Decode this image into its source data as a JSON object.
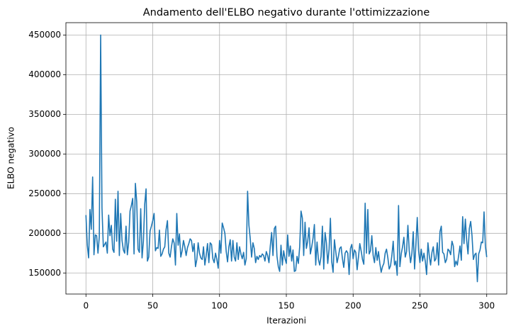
{
  "chart_data": {
    "type": "line",
    "title": "Andamento dell'ELBO negativo durante l'ottimizzazione",
    "x_label": "Iterazioni",
    "y_label": "ELBO negativo",
    "color": "#1f77b4",
    "grid": true,
    "xlim": [
      -15,
      315
    ],
    "ylim": [
      123450,
      465550
    ],
    "xticks": [
      0,
      50,
      100,
      150,
      200,
      250,
      300
    ],
    "yticks": [
      150000,
      200000,
      250000,
      300000,
      350000,
      400000,
      450000
    ],
    "x": [
      0,
      1,
      2,
      3,
      4,
      5,
      6,
      7,
      8,
      9,
      10,
      11,
      12,
      13,
      14,
      15,
      16,
      17,
      18,
      19,
      20,
      21,
      22,
      23,
      24,
      25,
      26,
      27,
      28,
      29,
      30,
      31,
      32,
      33,
      34,
      35,
      36,
      37,
      38,
      39,
      40,
      41,
      42,
      43,
      44,
      45,
      46,
      47,
      48,
      49,
      50,
      51,
      52,
      53,
      54,
      55,
      56,
      57,
      58,
      59,
      60,
      61,
      62,
      63,
      64,
      65,
      66,
      67,
      68,
      69,
      70,
      71,
      72,
      73,
      74,
      75,
      76,
      77,
      78,
      79,
      80,
      81,
      82,
      83,
      84,
      85,
      86,
      87,
      88,
      89,
      90,
      91,
      92,
      93,
      94,
      95,
      96,
      97,
      98,
      99,
      100,
      101,
      102,
      103,
      104,
      105,
      106,
      107,
      108,
      109,
      110,
      111,
      112,
      113,
      114,
      115,
      116,
      117,
      118,
      119,
      120,
      121,
      122,
      123,
      124,
      125,
      126,
      127,
      128,
      129,
      130,
      131,
      132,
      133,
      134,
      135,
      136,
      137,
      138,
      139,
      140,
      141,
      142,
      143,
      144,
      145,
      146,
      147,
      148,
      149,
      150,
      151,
      152,
      153,
      154,
      155,
      156,
      157,
      158,
      159,
      160,
      161,
      162,
      163,
      164,
      165,
      166,
      167,
      168,
      169,
      170,
      171,
      172,
      173,
      174,
      175,
      176,
      177,
      178,
      179,
      180,
      181,
      182,
      183,
      184,
      185,
      186,
      187,
      188,
      189,
      190,
      191,
      192,
      193,
      194,
      195,
      196,
      197,
      198,
      199,
      200,
      201,
      202,
      203,
      204,
      205,
      206,
      207,
      208,
      209,
      210,
      211,
      212,
      213,
      214,
      215,
      216,
      217,
      218,
      219,
      220,
      221,
      222,
      223,
      224,
      225,
      226,
      227,
      228,
      229,
      230,
      231,
      232,
      233,
      234,
      235,
      236,
      237,
      238,
      239,
      240,
      241,
      242,
      243,
      244,
      245,
      246,
      247,
      248,
      249,
      250,
      251,
      252,
      253,
      254,
      255,
      256,
      257,
      258,
      259,
      260,
      261,
      262,
      263,
      264,
      265,
      266,
      267,
      268,
      269,
      270,
      271,
      272,
      273,
      274,
      275,
      276,
      277,
      278,
      279,
      280,
      281,
      282,
      283,
      284,
      285,
      286,
      287,
      288,
      289,
      290,
      291,
      292,
      293,
      294,
      295,
      296,
      297,
      298,
      299,
      300
    ],
    "values": [
      223000,
      185000,
      169000,
      230000,
      205000,
      271000,
      173000,
      198000,
      197000,
      175000,
      196000,
      450000,
      232000,
      183000,
      186000,
      189000,
      175000,
      223000,
      197000,
      210000,
      180000,
      176000,
      243000,
      190000,
      253000,
      172000,
      225000,
      191000,
      179000,
      175000,
      209000,
      173000,
      189000,
      228000,
      235000,
      244000,
      174000,
      263000,
      240000,
      180000,
      176000,
      231000,
      169000,
      190000,
      237000,
      256000,
      165000,
      170000,
      203000,
      209000,
      216000,
      225000,
      178000,
      182000,
      181000,
      204000,
      171000,
      174000,
      180000,
      183000,
      205000,
      216000,
      175000,
      170000,
      183000,
      193000,
      188000,
      160000,
      225000,
      185000,
      199000,
      170000,
      178000,
      191000,
      183000,
      172000,
      182000,
      187000,
      193000,
      191000,
      177000,
      187000,
      158000,
      167000,
      188000,
      175000,
      169000,
      167000,
      183000,
      160000,
      172000,
      187000,
      163000,
      188000,
      186000,
      168000,
      163000,
      175000,
      167000,
      156000,
      191000,
      175000,
      213000,
      207000,
      200000,
      177000,
      164000,
      183000,
      192000,
      165000,
      191000,
      170000,
      165000,
      188000,
      167000,
      183000,
      174000,
      168000,
      176000,
      160000,
      168000,
      253000,
      210000,
      193000,
      170000,
      188000,
      181000,
      163000,
      171000,
      167000,
      172000,
      170000,
      174000,
      172000,
      165000,
      177000,
      172000,
      163000,
      184000,
      201000,
      172000,
      206000,
      209000,
      171000,
      158000,
      152000,
      185000,
      160000,
      178000,
      168000,
      162000,
      198000,
      171000,
      184000,
      165000,
      179000,
      152000,
      153000,
      171000,
      162000,
      183000,
      228000,
      219000,
      172000,
      214000,
      181000,
      190000,
      207000,
      174000,
      183000,
      194000,
      211000,
      160000,
      189000,
      167000,
      160000,
      171000,
      209000,
      155000,
      201000,
      188000,
      162000,
      180000,
      219000,
      164000,
      151000,
      192000,
      177000,
      163000,
      171000,
      181000,
      183000,
      168000,
      157000,
      175000,
      178000,
      175000,
      148000,
      181000,
      186000,
      168000,
      179000,
      176000,
      154000,
      170000,
      187000,
      178000,
      167000,
      161000,
      238000,
      175000,
      230000,
      174000,
      178000,
      197000,
      172000,
      163000,
      182000,
      166000,
      177000,
      162000,
      151000,
      158000,
      162000,
      175000,
      180000,
      169000,
      155000,
      159000,
      172000,
      190000,
      160000,
      165000,
      147000,
      235000,
      158000,
      174000,
      183000,
      195000,
      170000,
      177000,
      210000,
      178000,
      163000,
      175000,
      202000,
      155000,
      186000,
      220000,
      178000,
      163000,
      180000,
      165000,
      175000,
      165000,
      148000,
      188000,
      172000,
      160000,
      176000,
      183000,
      165000,
      168000,
      188000,
      160000,
      202000,
      209000,
      176000,
      174000,
      163000,
      167000,
      180000,
      178000,
      173000,
      190000,
      184000,
      158000,
      165000,
      160000,
      172000,
      184000,
      166000,
      221000,
      187000,
      218000,
      191000,
      174000,
      206000,
      215000,
      197000,
      167000,
      173000,
      175000,
      139000,
      174000,
      179000,
      189000,
      188000,
      227000,
      184000,
      170000
    ]
  }
}
